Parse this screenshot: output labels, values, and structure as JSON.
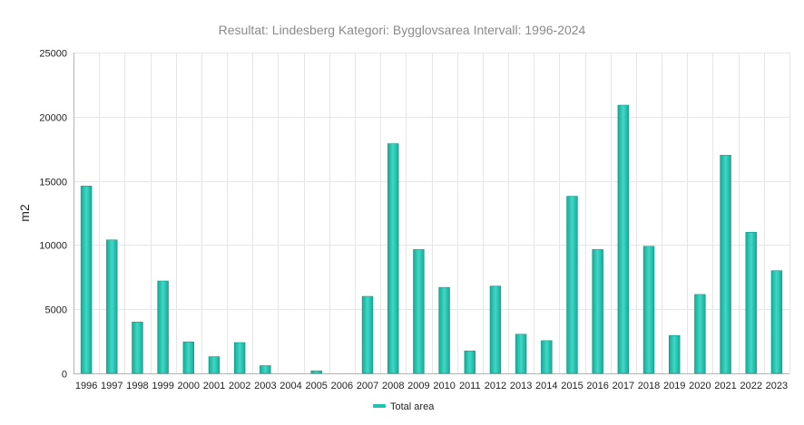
{
  "chart_data": {
    "type": "bar",
    "title": "Resultat: Lindesberg Kategori: Bygglovsarea Intervall: 1996-2024",
    "xlabel": "",
    "ylabel": "m2",
    "ylim": [
      0,
      25000
    ],
    "yticks": [
      "0",
      "5000",
      "10000",
      "15000",
      "20000",
      "25000"
    ],
    "grid": true,
    "legend_position": "bottom",
    "categories": [
      "1996",
      "1997",
      "1998",
      "1999",
      "2000",
      "2001",
      "2002",
      "2003",
      "2004",
      "2005",
      "2006",
      "2007",
      "2008",
      "2009",
      "2010",
      "2011",
      "2012",
      "2013",
      "2014",
      "2015",
      "2016",
      "2017",
      "2018",
      "2019",
      "2020",
      "2021",
      "2022",
      "2023"
    ],
    "series": [
      {
        "name": "Total area",
        "color": "#21c2b0",
        "values": [
          14600,
          10400,
          4000,
          7200,
          2450,
          1300,
          2400,
          600,
          0,
          200,
          0,
          6000,
          17900,
          9650,
          6700,
          1750,
          6800,
          3050,
          2550,
          13800,
          9650,
          20900,
          9900,
          2950,
          6150,
          17000,
          11000,
          8000
        ]
      }
    ]
  }
}
